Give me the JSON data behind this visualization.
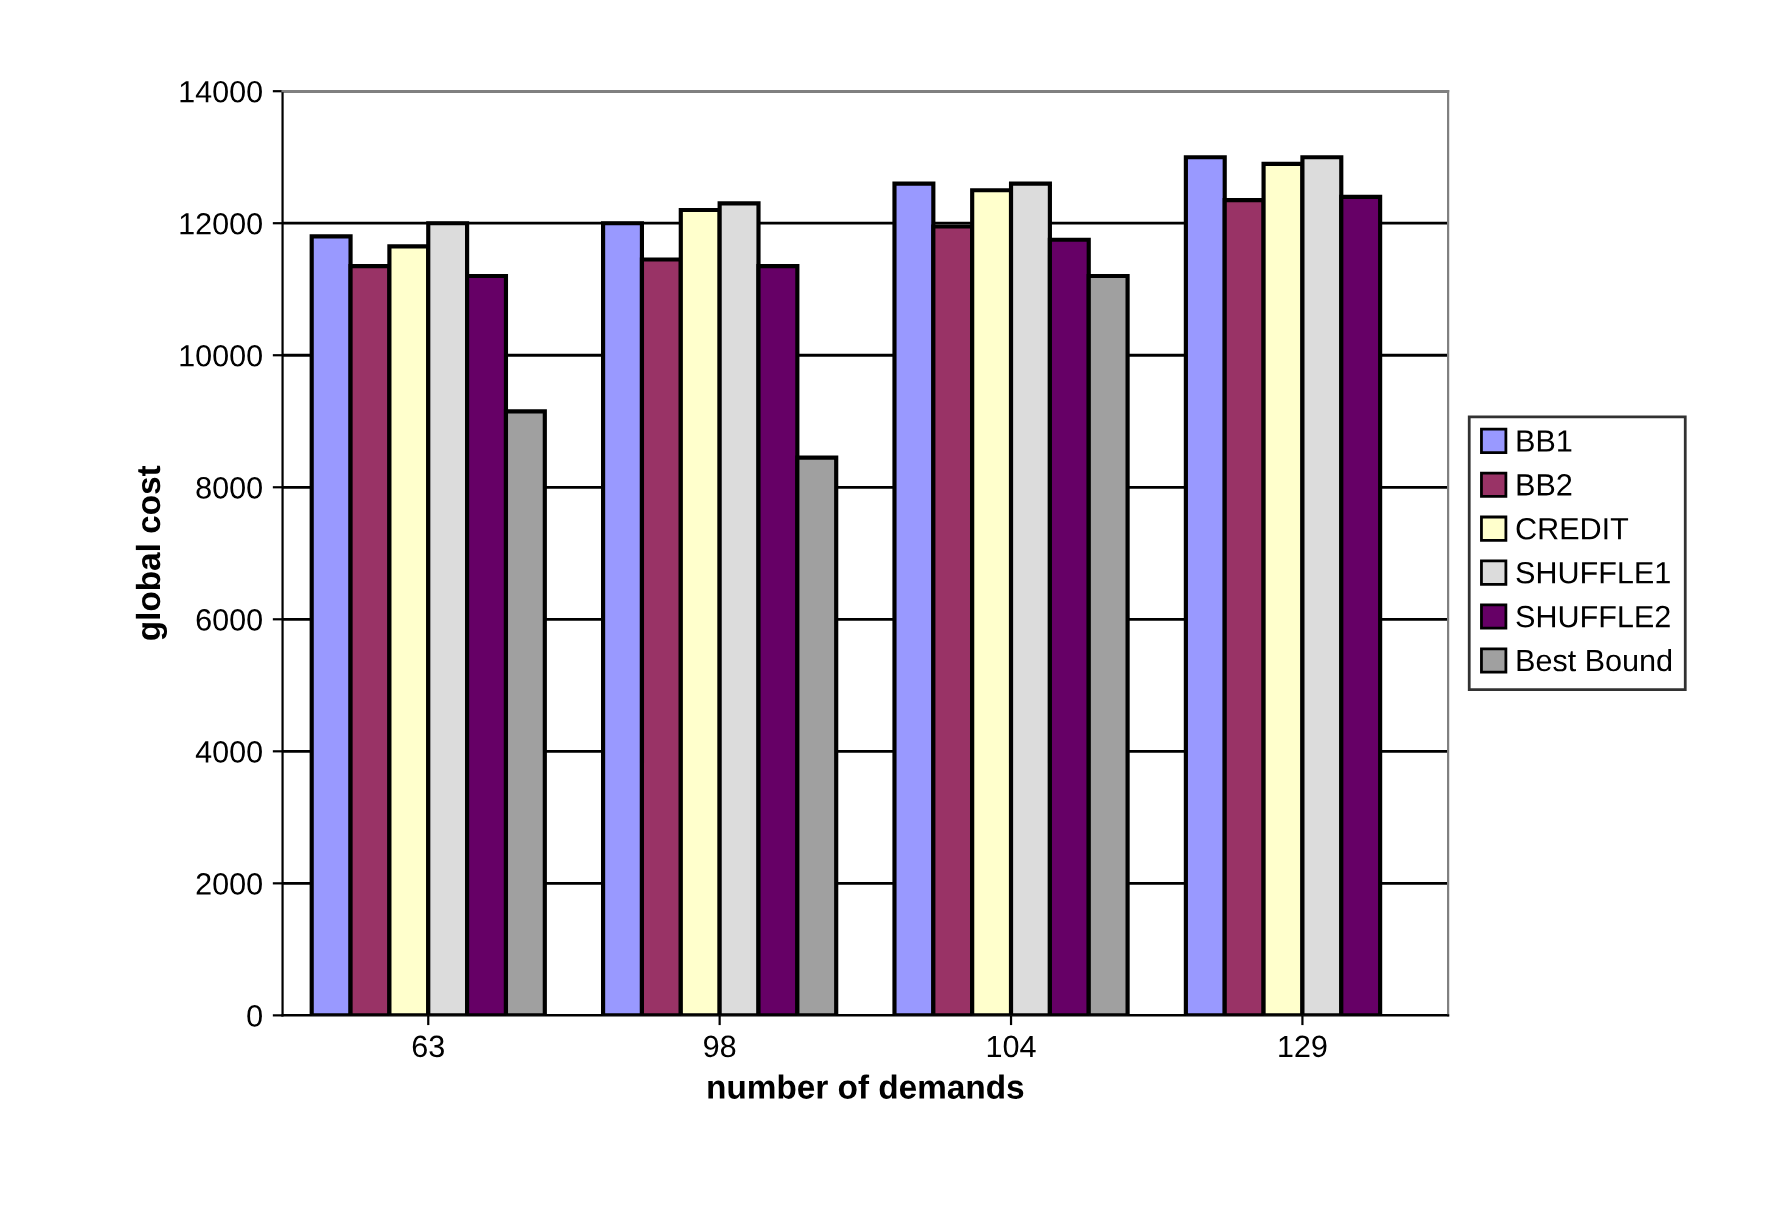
{
  "chart_data": {
    "type": "bar",
    "xlabel": "number of demands",
    "ylabel": "global cost",
    "categories": [
      "63",
      "98",
      "104",
      "129"
    ],
    "series": [
      {
        "name": "BB1",
        "color": "#9999ff",
        "values": [
          11800,
          12000,
          12600,
          13000
        ]
      },
      {
        "name": "BB2",
        "color": "#993366",
        "values": [
          11350,
          11450,
          11950,
          12350
        ]
      },
      {
        "name": "CREDIT",
        "color": "#ffffcc",
        "values": [
          11650,
          12200,
          12500,
          12900
        ]
      },
      {
        "name": "SHUFFLE1",
        "color": "#dcdcdc",
        "values": [
          12000,
          12300,
          12600,
          13000
        ]
      },
      {
        "name": "SHUFFLE2",
        "color": "#660066",
        "values": [
          11200,
          11350,
          11750,
          12400
        ]
      },
      {
        "name": "Best Bound",
        "color": "#a0a0a0",
        "values": [
          9150,
          8450,
          11200,
          null
        ]
      }
    ],
    "ylim": [
      0,
      14000
    ],
    "yticks": [
      0,
      2000,
      4000,
      6000,
      8000,
      10000,
      12000,
      14000
    ],
    "grid": "y",
    "legend": "right"
  }
}
